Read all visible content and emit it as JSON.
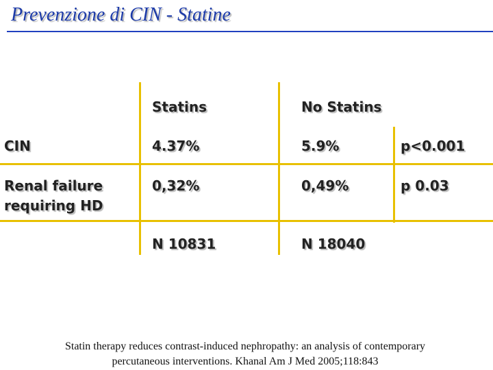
{
  "header": {
    "title": "Prevenzione di CIN - Statine"
  },
  "table": {
    "columns": [
      "Statins",
      "No Statins"
    ],
    "rows": [
      [
        "CIN",
        "4.37%",
        "5.9%",
        "p<0.001"
      ],
      [
        "Renal failure requiring HD",
        "0,32%",
        "0,49%",
        "p 0.03"
      ]
    ],
    "totals": [
      "N 10831",
      "N 18040"
    ]
  },
  "citation": [
    "Statin therapy reduces contrast-induced nephropathy: an analysis of contemporary",
    "percutaneous interventions. Khanal Am J Med 2005;118:843"
  ]
}
